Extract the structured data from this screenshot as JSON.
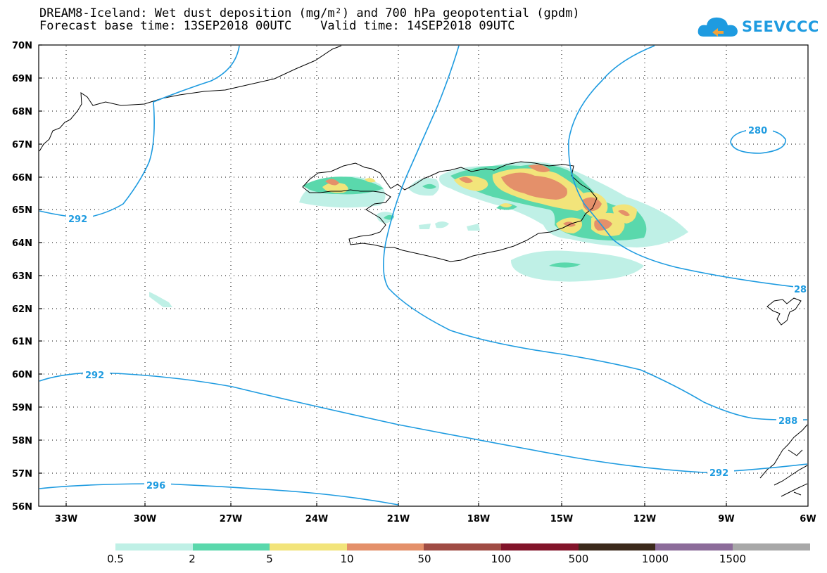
{
  "header": {
    "title_line1": "DREAM8-Iceland: Wet dust deposition (mg/m²) and 700 hPa geopotential (gpdm)",
    "title_line2": "Forecast base time: 13SEP2018 00UTC    Valid time: 14SEP2018 09UTC"
  },
  "logo": {
    "text": "SEEVCCC",
    "icon": "cloud-icon",
    "color": "#1e9be0"
  },
  "map": {
    "lat_labels": [
      "70N",
      "69N",
      "68N",
      "67N",
      "66N",
      "65N",
      "64N",
      "63N",
      "62N",
      "61N",
      "60N",
      "59N",
      "58N",
      "57N",
      "56N"
    ],
    "lon_labels": [
      "33W",
      "30W",
      "27W",
      "24W",
      "21W",
      "18W",
      "15W",
      "12W",
      "9W",
      "6W"
    ],
    "contour_color": "#1e9be0",
    "contour_labels": [
      "292",
      "292",
      "296",
      "288",
      "292",
      "280",
      "28"
    ],
    "grid": "dotted"
  },
  "legend": {
    "labels": [
      "0.5",
      "2",
      "5",
      "10",
      "50",
      "100",
      "500",
      "1000",
      "1500"
    ],
    "colors": [
      "#bff0e6",
      "#5ad8ac",
      "#f2e47a",
      "#e4906a",
      "#a04c44",
      "#82142a",
      "#3c2a1c",
      "#8c6c9a",
      "#a8a8a8"
    ]
  }
}
